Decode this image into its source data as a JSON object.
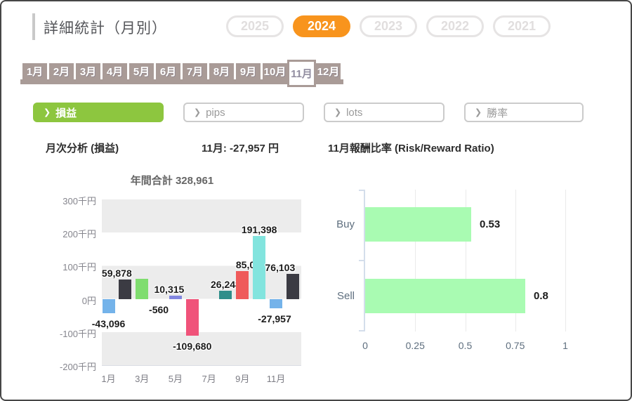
{
  "colors": {
    "accent_orange": "#F8941D",
    "accent_green": "#8DC63F",
    "tab_color": "#A99B97",
    "rr_bar_green": "#A9FBB2"
  },
  "header": {
    "title": "詳細統計（月別）",
    "years": [
      {
        "label": "2025",
        "selected": false
      },
      {
        "label": "2024",
        "selected": true
      },
      {
        "label": "2023",
        "selected": false
      },
      {
        "label": "2022",
        "selected": false
      },
      {
        "label": "2021",
        "selected": false
      }
    ]
  },
  "month_tabs": {
    "months": [
      "1月",
      "2月",
      "3月",
      "4月",
      "5月",
      "6月",
      "7月",
      "8月",
      "9月",
      "10月",
      "11月",
      "12月"
    ],
    "selected_index": 10
  },
  "metric_buttons": [
    {
      "key": "profit-loss",
      "label": "損益",
      "selected": true
    },
    {
      "key": "pips",
      "label": "pips",
      "selected": false
    },
    {
      "key": "lots",
      "label": "lots",
      "selected": false
    },
    {
      "key": "win-rate",
      "label": "勝率",
      "selected": false
    }
  ],
  "section": {
    "left_title": "月次分析 (損益)",
    "month_summary": "11月:  -27,957 円",
    "right_title": "11月報酬比率 (Risk/Reward Ratio)"
  },
  "chart_data": [
    {
      "type": "bar",
      "title": "年間合計 328,961",
      "categories": [
        "1月",
        "2月",
        "3月",
        "4月",
        "5月",
        "6月",
        "7月",
        "8月",
        "9月",
        "10月",
        "11月",
        "12月"
      ],
      "values": [
        -43096,
        59878,
        61237,
        -560,
        10315,
        -109680,
        0,
        26248,
        85075,
        191398,
        -27957,
        76103
      ],
      "labels": [
        "-43,096",
        "59,878",
        "",
        "-560",
        "10,315",
        "-109,680",
        "",
        "26,248",
        "85,075",
        "191,398",
        "-27,957",
        "76,103"
      ],
      "bar_colors": [
        "#74B3EA",
        "#3B3B43",
        "#7FDD6F",
        "#8286E0",
        "#8286E0",
        "#F0537A",
        "#999999",
        "#2F8E8A",
        "#EF5A5A",
        "#82E4DE",
        "#74B3EA",
        "#3B3B43"
      ],
      "ylabel_unit": "千円",
      "yticks": [
        "300千円",
        "200千円",
        "100千円",
        "0円",
        "-100千円",
        "-200千円"
      ],
      "ylim": [
        -200000,
        300000
      ],
      "xticks": [
        "1月",
        "3月",
        "5月",
        "7月",
        "9月",
        "11月"
      ]
    },
    {
      "type": "bar_horizontal",
      "categories": [
        "Buy",
        "Sell"
      ],
      "values": [
        0.53,
        0.8
      ],
      "labels": [
        "0.53",
        "0.8"
      ],
      "xticks": [
        "0",
        "0.25",
        "0.5",
        "0.75",
        "1"
      ],
      "xlim": [
        0,
        1.1
      ]
    }
  ]
}
